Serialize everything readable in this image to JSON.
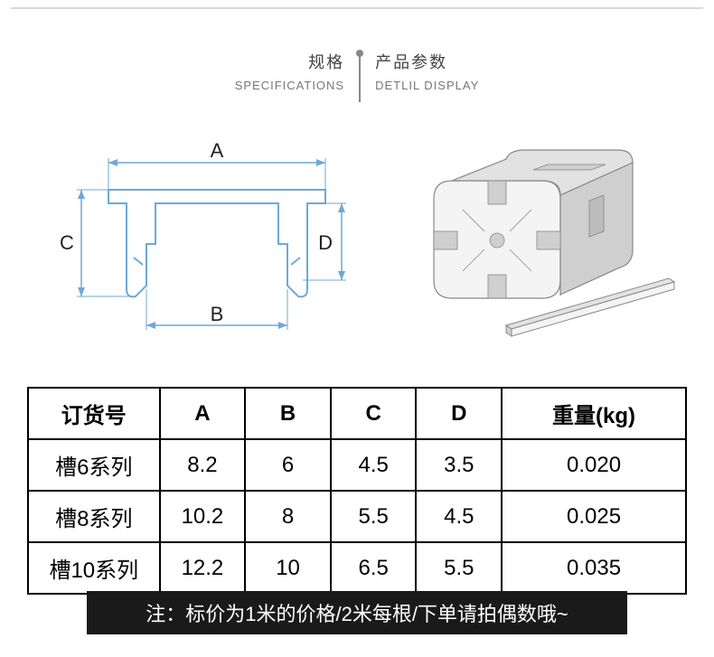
{
  "header": {
    "left_cn": "规格",
    "left_en": "SPECIFICATIONS",
    "right_cn": "产品参数",
    "right_en": "DETLIL DISPLAY"
  },
  "diagram": {
    "labels": {
      "A": "A",
      "B": "B",
      "C": "C",
      "D": "D"
    },
    "stroke_color": "#6fa8d6",
    "fill_color": "#ffffff",
    "label_color": "#222222"
  },
  "render3d": {
    "stroke": "#888888",
    "face_light": "#f4f4f4",
    "face_mid": "#e2e2e2",
    "face_dark": "#cfcfcf"
  },
  "table": {
    "headers": [
      "订货号",
      "A",
      "B",
      "C",
      "D",
      "重量(kg)"
    ],
    "col_widths_pct": [
      20,
      13,
      13,
      13,
      13,
      28
    ],
    "rows": [
      [
        "槽6系列",
        "8.2",
        "6",
        "4.5",
        "3.5",
        "0.020"
      ],
      [
        "槽8系列",
        "10.2",
        "8",
        "5.5",
        "4.5",
        "0.025"
      ],
      [
        "槽10系列",
        "12.2",
        "10",
        "6.5",
        "5.5",
        "0.035"
      ]
    ],
    "border_color": "#000000",
    "header_fontsize": 24,
    "cell_fontsize": 24
  },
  "footnote": {
    "prefix": "注：",
    "text": "标价为1米的价格/2米每根/下单请拍偶数哦~",
    "bg": "#1a1a1a",
    "color": "#ffffff"
  }
}
